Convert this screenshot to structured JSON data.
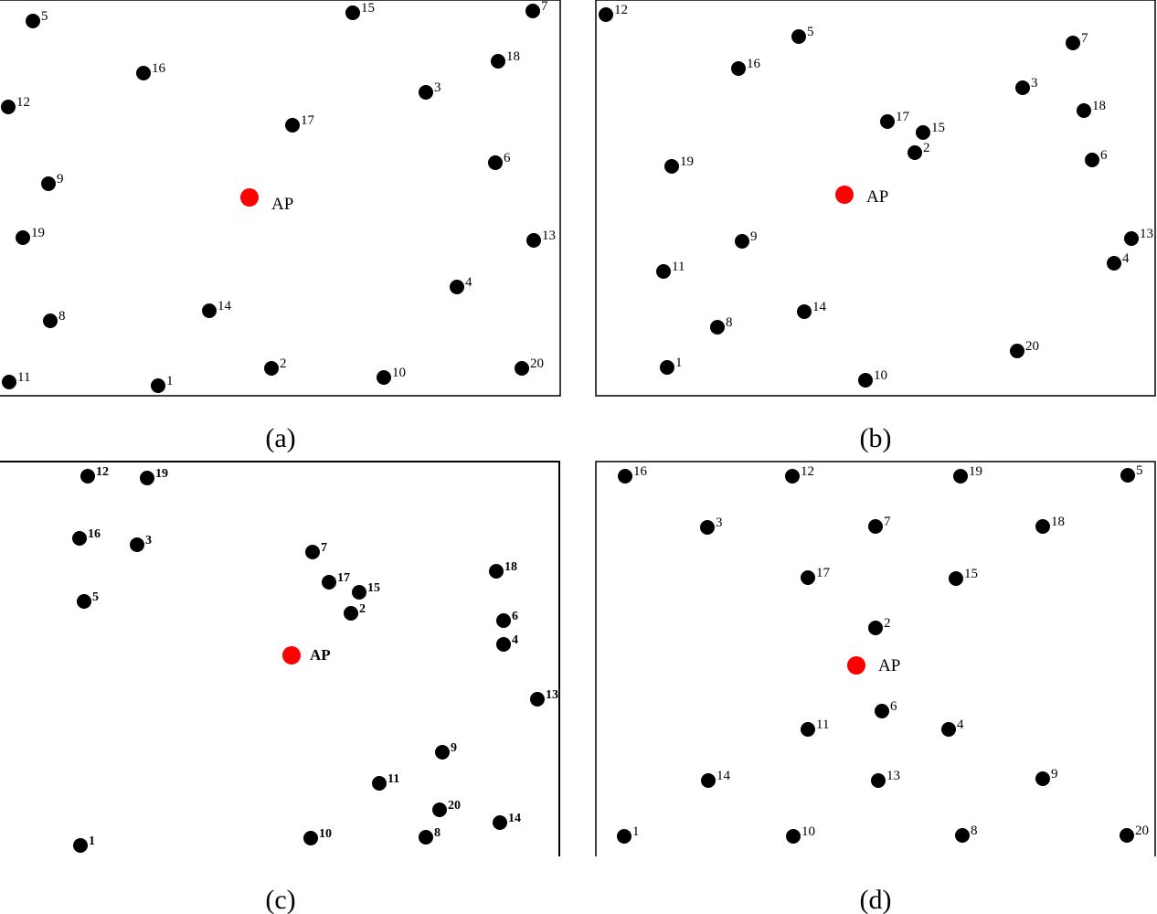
{
  "colors": {
    "node": "#000000",
    "ap": "#ff0000",
    "frame": "#000000"
  },
  "panels": [
    {
      "id": "a",
      "caption": "(a)",
      "ap_label": "AP",
      "nodes": [
        {
          "label": "5"
        },
        {
          "label": "15"
        },
        {
          "label": "7"
        },
        {
          "label": "16"
        },
        {
          "label": "18"
        },
        {
          "label": "3"
        },
        {
          "label": "12"
        },
        {
          "label": "17"
        },
        {
          "label": "6"
        },
        {
          "label": "9"
        },
        {
          "label": "19"
        },
        {
          "label": "13"
        },
        {
          "label": "4"
        },
        {
          "label": "14"
        },
        {
          "label": "8"
        },
        {
          "label": "11"
        },
        {
          "label": "1"
        },
        {
          "label": "2"
        },
        {
          "label": "10"
        },
        {
          "label": "20"
        }
      ]
    },
    {
      "id": "b",
      "caption": "(b)",
      "ap_label": "AP",
      "nodes": [
        {
          "label": "12"
        },
        {
          "label": "5"
        },
        {
          "label": "7"
        },
        {
          "label": "16"
        },
        {
          "label": "3"
        },
        {
          "label": "18"
        },
        {
          "label": "17"
        },
        {
          "label": "15"
        },
        {
          "label": "2"
        },
        {
          "label": "6"
        },
        {
          "label": "19"
        },
        {
          "label": "9"
        },
        {
          "label": "13"
        },
        {
          "label": "4"
        },
        {
          "label": "11"
        },
        {
          "label": "14"
        },
        {
          "label": "8"
        },
        {
          "label": "20"
        },
        {
          "label": "1"
        },
        {
          "label": "10"
        }
      ]
    },
    {
      "id": "c",
      "caption": "(c)",
      "ap_label": "AP",
      "nodes": [
        {
          "label": "12"
        },
        {
          "label": "19"
        },
        {
          "label": "16"
        },
        {
          "label": "3"
        },
        {
          "label": "7"
        },
        {
          "label": "18"
        },
        {
          "label": "5"
        },
        {
          "label": "17"
        },
        {
          "label": "15"
        },
        {
          "label": "2"
        },
        {
          "label": "6"
        },
        {
          "label": "4"
        },
        {
          "label": "13"
        },
        {
          "label": "9"
        },
        {
          "label": "11"
        },
        {
          "label": "20"
        },
        {
          "label": "14"
        },
        {
          "label": "1"
        },
        {
          "label": "10"
        },
        {
          "label": "8"
        }
      ]
    },
    {
      "id": "d",
      "caption": "(d)",
      "ap_label": "AP",
      "nodes": [
        {
          "label": "16"
        },
        {
          "label": "12"
        },
        {
          "label": "19"
        },
        {
          "label": "5"
        },
        {
          "label": "3"
        },
        {
          "label": "7"
        },
        {
          "label": "18"
        },
        {
          "label": "17"
        },
        {
          "label": "15"
        },
        {
          "label": "2"
        },
        {
          "label": "6"
        },
        {
          "label": "11"
        },
        {
          "label": "4"
        },
        {
          "label": "14"
        },
        {
          "label": "13"
        },
        {
          "label": "9"
        },
        {
          "label": "1"
        },
        {
          "label": "10"
        },
        {
          "label": "8"
        },
        {
          "label": "20"
        }
      ]
    }
  ]
}
